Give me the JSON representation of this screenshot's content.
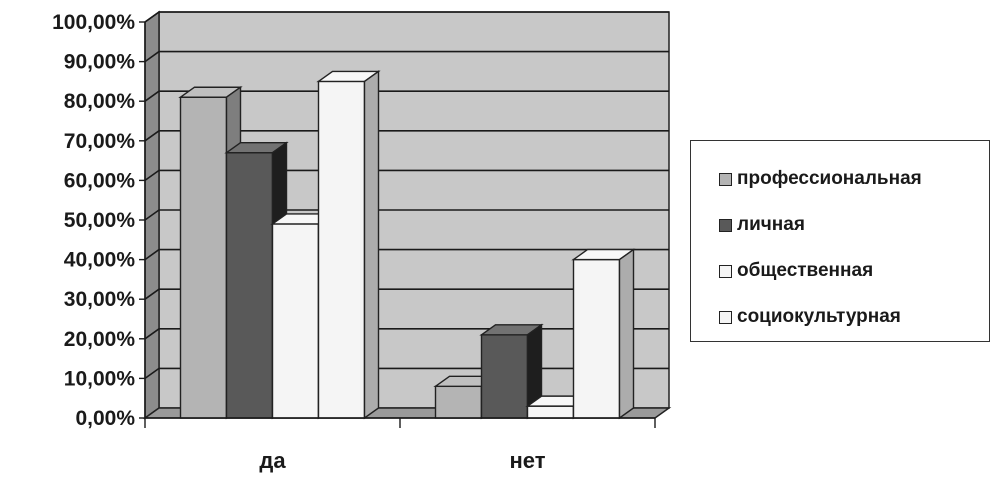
{
  "chart_data": {
    "type": "bar",
    "categories": [
      "да",
      "нет"
    ],
    "series": [
      {
        "name": "профессиональная",
        "values": [
          81,
          8
        ],
        "color": "#b4b4b4"
      },
      {
        "name": "личная",
        "values": [
          67,
          21
        ],
        "color": "#595959"
      },
      {
        "name": "общественная",
        "values": [
          49,
          3
        ],
        "color": "#f5f5f5"
      },
      {
        "name": "социокультурная",
        "values": [
          85,
          40
        ],
        "color": "#f5f5f5"
      }
    ],
    "ylim": [
      0,
      100
    ],
    "yticks": [
      "0,00%",
      "10,00%",
      "20,00%",
      "30,00%",
      "40,00%",
      "50,00%",
      "60,00%",
      "70,00%",
      "80,00%",
      "90,00%",
      "100,00%"
    ],
    "grid": true,
    "legend_position": "right",
    "title": "",
    "xlabel": "",
    "ylabel": "",
    "wall_color": "#c8c8c8"
  }
}
